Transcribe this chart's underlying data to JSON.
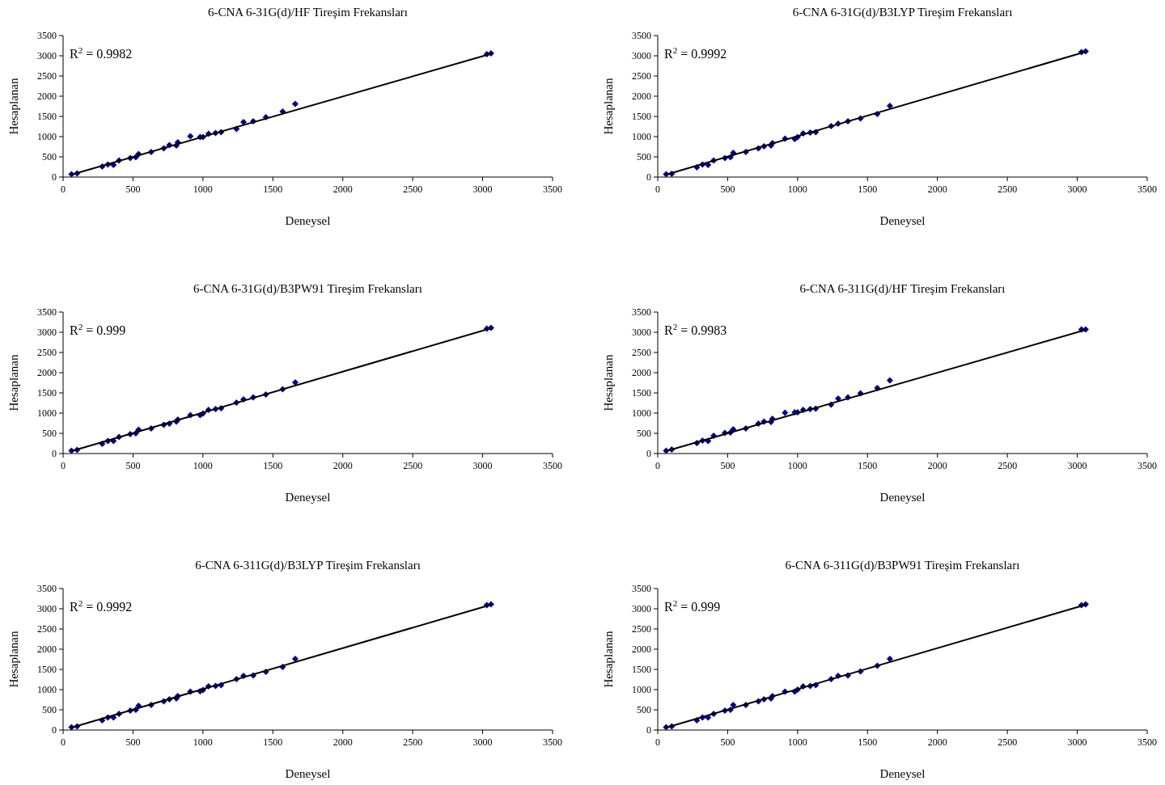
{
  "chart_data": [
    {
      "type": "scatter",
      "title": "6-CNA 6-31G(d)/HF Tireşim Frekansları",
      "xlabel": "Deneysel",
      "ylabel": "Hesaplanan",
      "xlim": [
        0,
        3500
      ],
      "xticks": [
        0,
        500,
        1000,
        1500,
        2000,
        2500,
        3000,
        3500
      ],
      "ylim": [
        0,
        3500
      ],
      "yticks": [
        0,
        500,
        1000,
        1500,
        2000,
        2500,
        3000,
        3500
      ],
      "annotations": [
        "R$^{2}$ = 0.9982"
      ],
      "x": [
        60,
        100,
        280,
        320,
        360,
        400,
        480,
        520,
        540,
        630,
        720,
        760,
        810,
        820,
        910,
        980,
        1000,
        1040,
        1090,
        1130,
        1240,
        1290,
        1360,
        1450,
        1570,
        1660,
        3030,
        3060
      ],
      "series": [
        {
          "color": "#000080",
          "marker": "diamond",
          "values": [
            70,
            90,
            260,
            310,
            300,
            410,
            470,
            490,
            570,
            620,
            710,
            790,
            780,
            860,
            1010,
            990,
            990,
            1070,
            1090,
            1110,
            1190,
            1360,
            1380,
            1480,
            1620,
            1810,
            3040,
            3060
          ]
        },
        {
          "type": "line",
          "color": "#000000",
          "values": [
            60,
            null,
            null,
            null,
            null,
            null,
            null,
            null,
            null,
            null,
            null,
            null,
            null,
            null,
            null,
            null,
            null,
            null,
            null,
            null,
            null,
            null,
            null,
            null,
            null,
            null,
            null,
            3050
          ]
        }
      ]
    },
    {
      "type": "scatter",
      "title": "6-CNA 6-31G(d)/B3LYP Tireşim Frekansları",
      "xlabel": "Deneysel",
      "ylabel": "Hesaplanan",
      "xlim": [
        0,
        3500
      ],
      "xticks": [
        0,
        500,
        1000,
        1500,
        2000,
        2500,
        3000,
        3500
      ],
      "ylim": [
        0,
        3500
      ],
      "yticks": [
        0,
        500,
        1000,
        1500,
        2000,
        2500,
        3000,
        3500
      ],
      "annotations": [
        "R$^{2}$ = 0.9992"
      ],
      "x": [
        60,
        100,
        280,
        320,
        360,
        400,
        480,
        520,
        540,
        630,
        720,
        760,
        810,
        820,
        910,
        980,
        1000,
        1040,
        1090,
        1130,
        1240,
        1290,
        1360,
        1450,
        1570,
        1660,
        3030,
        3060
      ],
      "series": [
        {
          "color": "#000080",
          "marker": "diamond",
          "values": [
            70,
            80,
            240,
            310,
            300,
            410,
            470,
            490,
            600,
            620,
            710,
            760,
            780,
            840,
            950,
            940,
            990,
            1080,
            1100,
            1110,
            1260,
            1320,
            1380,
            1450,
            1560,
            1760,
            3090,
            3110
          ]
        },
        {
          "type": "line",
          "color": "#000000",
          "values": [
            60,
            null,
            null,
            null,
            null,
            null,
            null,
            null,
            null,
            null,
            null,
            null,
            null,
            null,
            null,
            null,
            null,
            null,
            null,
            null,
            null,
            null,
            null,
            null,
            null,
            null,
            null,
            3100
          ]
        }
      ]
    },
    {
      "type": "scatter",
      "title": "6-CNA 6-31G(d)/B3PW91 Tireşim Frekansları",
      "xlabel": "Deneysel",
      "ylabel": "Hesaplanan",
      "xlim": [
        0,
        3500
      ],
      "xticks": [
        0,
        500,
        1000,
        1500,
        2000,
        2500,
        3000,
        3500
      ],
      "ylim": [
        0,
        3500
      ],
      "yticks": [
        0,
        500,
        1000,
        1500,
        2000,
        2500,
        3000,
        3500
      ],
      "annotations": [
        "R$^{2}$ = 0.999"
      ],
      "x": [
        60,
        100,
        280,
        320,
        360,
        400,
        480,
        520,
        540,
        630,
        720,
        760,
        810,
        820,
        910,
        980,
        1000,
        1040,
        1090,
        1130,
        1240,
        1290,
        1360,
        1450,
        1570,
        1660,
        3030,
        3060
      ],
      "series": [
        {
          "color": "#000080",
          "marker": "diamond",
          "values": [
            70,
            90,
            240,
            310,
            310,
            410,
            480,
            500,
            590,
            620,
            710,
            740,
            790,
            840,
            950,
            950,
            990,
            1080,
            1100,
            1120,
            1260,
            1340,
            1390,
            1460,
            1590,
            1760,
            3090,
            3110
          ]
        },
        {
          "type": "line",
          "color": "#000000",
          "values": [
            60,
            null,
            null,
            null,
            null,
            null,
            null,
            null,
            null,
            null,
            null,
            null,
            null,
            null,
            null,
            null,
            null,
            null,
            null,
            null,
            null,
            null,
            null,
            null,
            null,
            null,
            null,
            3100
          ]
        }
      ]
    },
    {
      "type": "scatter",
      "title": "6-CNA 6-311G(d)/HF Tireşim Frekansları",
      "xlabel": "Deneysel",
      "ylabel": "Hesaplanan",
      "xlim": [
        0,
        3500
      ],
      "xticks": [
        0,
        500,
        1000,
        1500,
        2000,
        2500,
        3000,
        3500
      ],
      "ylim": [
        0,
        3500
      ],
      "yticks": [
        0,
        500,
        1000,
        1500,
        2000,
        2500,
        3000,
        3500
      ],
      "annotations": [
        "R$^{2}$ = 0.9983"
      ],
      "x": [
        60,
        100,
        280,
        320,
        360,
        400,
        480,
        520,
        540,
        630,
        720,
        760,
        810,
        820,
        910,
        980,
        1000,
        1040,
        1090,
        1130,
        1240,
        1290,
        1360,
        1450,
        1570,
        1660,
        3030,
        3060
      ],
      "series": [
        {
          "color": "#000080",
          "marker": "diamond",
          "values": [
            70,
            100,
            260,
            320,
            310,
            440,
            510,
            520,
            600,
            620,
            740,
            790,
            780,
            860,
            1010,
            1020,
            1020,
            1080,
            1100,
            1110,
            1210,
            1360,
            1390,
            1490,
            1620,
            1810,
            3070,
            3070
          ]
        },
        {
          "type": "line",
          "color": "#000000",
          "values": [
            60,
            null,
            null,
            null,
            null,
            null,
            null,
            null,
            null,
            null,
            null,
            null,
            null,
            null,
            null,
            null,
            null,
            null,
            null,
            null,
            null,
            null,
            null,
            null,
            null,
            null,
            null,
            3060
          ]
        }
      ]
    },
    {
      "type": "scatter",
      "title": "6-CNA 6-311G(d)/B3LYP Tireşim Frekansları",
      "xlabel": "Deneysel",
      "ylabel": "Hesaplanan",
      "xlim": [
        0,
        3500
      ],
      "xticks": [
        0,
        500,
        1000,
        1500,
        2000,
        2500,
        3000,
        3500
      ],
      "ylim": [
        0,
        3500
      ],
      "yticks": [
        0,
        500,
        1000,
        1500,
        2000,
        2500,
        3000,
        3500
      ],
      "annotations": [
        "R$^{2}$ = 0.9992"
      ],
      "x": [
        60,
        100,
        280,
        320,
        360,
        400,
        480,
        520,
        540,
        630,
        720,
        760,
        810,
        820,
        910,
        980,
        1000,
        1040,
        1090,
        1130,
        1240,
        1290,
        1360,
        1450,
        1570,
        1660,
        3030,
        3060
      ],
      "series": [
        {
          "color": "#000080",
          "marker": "diamond",
          "values": [
            70,
            90,
            240,
            310,
            310,
            400,
            480,
            500,
            600,
            620,
            710,
            760,
            780,
            840,
            950,
            960,
            990,
            1080,
            1090,
            1110,
            1260,
            1340,
            1350,
            1440,
            1560,
            1760,
            3090,
            3110
          ]
        },
        {
          "type": "line",
          "color": "#000000",
          "values": [
            60,
            null,
            null,
            null,
            null,
            null,
            null,
            null,
            null,
            null,
            null,
            null,
            null,
            null,
            null,
            null,
            null,
            null,
            null,
            null,
            null,
            null,
            null,
            null,
            null,
            null,
            null,
            3100
          ]
        }
      ]
    },
    {
      "type": "scatter",
      "title": "6-CNA 6-311G(d)/B3PW91 Tireşim Frekansları",
      "xlabel": "Deneysel",
      "ylabel": "Hesaplanan",
      "xlim": [
        0,
        3500
      ],
      "xticks": [
        0,
        500,
        1000,
        1500,
        2000,
        2500,
        3000,
        3500
      ],
      "ylim": [
        0,
        3500
      ],
      "yticks": [
        0,
        500,
        1000,
        1500,
        2000,
        2500,
        3000,
        3500
      ],
      "annotations": [
        "R$^{2}$ = 0.999"
      ],
      "x": [
        60,
        100,
        280,
        320,
        360,
        400,
        480,
        520,
        540,
        630,
        720,
        760,
        810,
        820,
        910,
        980,
        1000,
        1040,
        1090,
        1130,
        1240,
        1290,
        1360,
        1450,
        1570,
        1660,
        3030,
        3060
      ],
      "series": [
        {
          "color": "#000080",
          "marker": "diamond",
          "values": [
            70,
            90,
            240,
            310,
            310,
            400,
            480,
            500,
            620,
            620,
            710,
            760,
            780,
            840,
            950,
            950,
            1000,
            1080,
            1090,
            1110,
            1260,
            1340,
            1350,
            1450,
            1590,
            1760,
            3090,
            3110
          ]
        },
        {
          "type": "line",
          "color": "#000000",
          "values": [
            60,
            null,
            null,
            null,
            null,
            null,
            null,
            null,
            null,
            null,
            null,
            null,
            null,
            null,
            null,
            null,
            null,
            null,
            null,
            null,
            null,
            null,
            null,
            null,
            null,
            null,
            null,
            3100
          ]
        }
      ]
    }
  ]
}
